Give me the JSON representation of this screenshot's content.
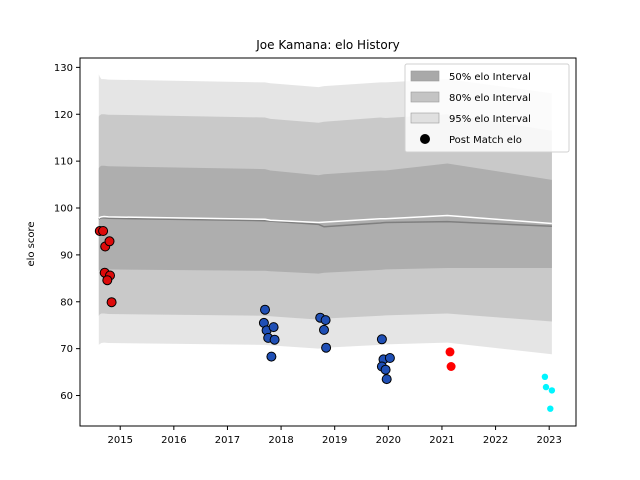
{
  "chart_data": {
    "type": "scatter",
    "title": "Joe Kamana: elo History",
    "xlabel": "",
    "ylabel": "elo score",
    "xlim": [
      2014.25,
      2023.5
    ],
    "ylim": [
      53.5,
      132
    ],
    "x_ticks": [
      2015,
      2016,
      2017,
      2018,
      2019,
      2020,
      2021,
      2022,
      2023
    ],
    "y_ticks": [
      60,
      70,
      80,
      90,
      100,
      110,
      120,
      130
    ],
    "grid": false,
    "legend_position": "top-right",
    "legend": [
      {
        "label": "50% elo Interval",
        "kind": "band",
        "color": "#a9a9a9"
      },
      {
        "label": "80% elo Interval",
        "kind": "band",
        "color": "#c4c4c4"
      },
      {
        "label": "95% elo Interval",
        "kind": "band",
        "color": "#e0e0e0"
      },
      {
        "label": "Post Match elo",
        "kind": "marker",
        "color": "#000000"
      }
    ],
    "bands": {
      "x": [
        2014.6,
        2014.62,
        2014.65,
        2014.7,
        2014.78,
        2017.7,
        2017.8,
        2018.7,
        2018.8,
        2019.85,
        2019.95,
        2021.1,
        2023.05
      ],
      "mean": [
        97.6,
        97.8,
        97.9,
        97.9,
        97.8,
        97.3,
        97.2,
        96.5,
        96.0,
        96.8,
        96.9,
        97.1,
        96.1
      ],
      "rating": [
        97.8,
        98.0,
        98.1,
        98.2,
        98.1,
        97.6,
        97.4,
        96.9,
        97.0,
        97.7,
        97.7,
        98.4,
        96.7
      ],
      "p50": {
        "low": [
          86.5,
          86.8,
          87.0,
          87.0,
          86.9,
          86.6,
          86.5,
          86.0,
          86.2,
          86.8,
          86.9,
          87.2,
          87.2
        ],
        "high": [
          108.5,
          108.8,
          109.0,
          109.0,
          108.9,
          108.3,
          108.0,
          107.0,
          107.2,
          108.0,
          108.0,
          109.5,
          106.0
        ]
      },
      "p80": {
        "low": [
          77.0,
          77.3,
          77.5,
          77.5,
          77.4,
          77.0,
          76.9,
          76.2,
          76.4,
          77.0,
          77.1,
          77.5,
          75.8
        ],
        "high": [
          119.5,
          119.8,
          120.0,
          120.0,
          119.9,
          119.3,
          119.0,
          118.2,
          118.4,
          119.3,
          119.2,
          120.0,
          116.5
        ]
      },
      "p95": {
        "low": [
          70.8,
          71.0,
          71.2,
          71.3,
          71.2,
          70.8,
          70.7,
          70.0,
          70.2,
          70.8,
          70.9,
          71.3,
          68.8
        ],
        "high": [
          128.5,
          128.0,
          127.5,
          127.5,
          127.4,
          126.8,
          126.6,
          125.8,
          126.0,
          126.8,
          126.8,
          127.5,
          124.5
        ]
      }
    },
    "series": [
      {
        "color": "#dd0a0a",
        "edge": "#000000",
        "r": 4.5,
        "points": [
          [
            2014.62,
            95.1
          ],
          [
            2014.68,
            95.1
          ],
          [
            2014.72,
            91.8
          ],
          [
            2014.8,
            92.9
          ],
          [
            2014.71,
            86.2
          ],
          [
            2014.81,
            85.6
          ],
          [
            2014.76,
            84.6
          ],
          [
            2014.84,
            79.9
          ]
        ]
      },
      {
        "color": "#1f4fb5",
        "edge": "#000000",
        "r": 4.5,
        "points": [
          [
            2017.7,
            78.3
          ],
          [
            2017.68,
            75.5
          ],
          [
            2017.73,
            73.9
          ],
          [
            2017.76,
            72.3
          ],
          [
            2017.86,
            74.6
          ],
          [
            2017.88,
            71.9
          ],
          [
            2017.82,
            68.3
          ],
          [
            2018.73,
            76.6
          ],
          [
            2018.83,
            76.1
          ],
          [
            2018.8,
            74.0
          ],
          [
            2018.84,
            70.2
          ],
          [
            2019.88,
            72.0
          ],
          [
            2019.91,
            67.7
          ],
          [
            2019.88,
            66.2
          ],
          [
            2020.03,
            68.0
          ],
          [
            2019.95,
            65.5
          ],
          [
            2019.97,
            63.5
          ]
        ]
      },
      {
        "color": "#ff0000",
        "edge": "none",
        "r": 4.5,
        "points": [
          [
            2021.15,
            69.3
          ],
          [
            2021.17,
            66.2
          ]
        ]
      },
      {
        "color": "#00f5ff",
        "edge": "none",
        "r": 3.2,
        "points": [
          [
            2022.92,
            64.0
          ],
          [
            2022.94,
            61.8
          ],
          [
            2023.05,
            61.1
          ],
          [
            2023.02,
            57.2
          ]
        ]
      }
    ],
    "colors": {
      "mean_line": "#7f7f7f",
      "rating_line": "#ffffff"
    }
  }
}
